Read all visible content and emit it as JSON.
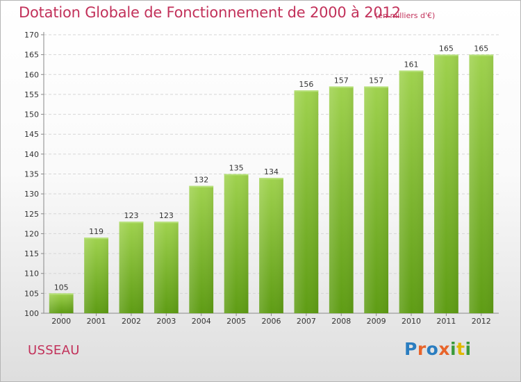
{
  "chart_data": {
    "type": "bar",
    "title": "Dotation Globale de Fonctionnement de 2000 à 2012",
    "unit_note": "(en milliers d'€)",
    "categories": [
      "2000",
      "2001",
      "2002",
      "2003",
      "2004",
      "2005",
      "2006",
      "2007",
      "2008",
      "2009",
      "2010",
      "2011",
      "2012"
    ],
    "values": [
      105,
      119,
      123,
      123,
      132,
      135,
      134,
      156,
      157,
      157,
      161,
      165,
      165
    ],
    "yticks": [
      100,
      105,
      110,
      115,
      120,
      125,
      130,
      135,
      140,
      145,
      150,
      155,
      160,
      165,
      170
    ],
    "ylim": [
      100,
      170
    ],
    "xlabel": "",
    "ylabel": "",
    "grid": true,
    "bar_color": "#8cc63f"
  },
  "footer": {
    "commune": "USSEAU",
    "logo": "Proxiti"
  }
}
